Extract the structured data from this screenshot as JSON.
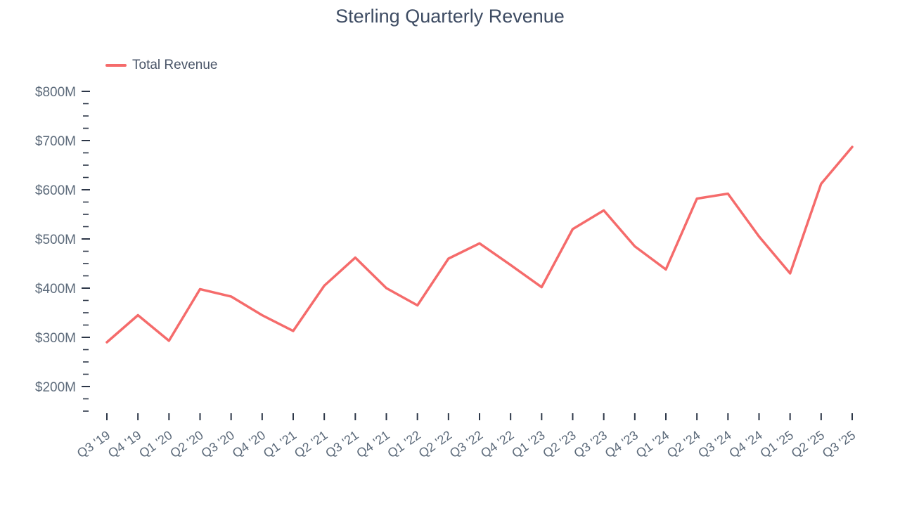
{
  "chart_data": {
    "type": "line",
    "title": "Sterling Quarterly Revenue",
    "legend": [
      {
        "label": "Total Revenue",
        "color": "#f56b6b"
      }
    ],
    "legend_position": "top-left",
    "grid": false,
    "categories": [
      "Q3 '19",
      "Q4 '19",
      "Q1 '20",
      "Q2 '20",
      "Q3 '20",
      "Q4 '20",
      "Q1 '21",
      "Q2 '21",
      "Q3 '21",
      "Q4 '21",
      "Q1 '22",
      "Q2 '22",
      "Q3 '22",
      "Q4 '22",
      "Q1 '23",
      "Q2 '23",
      "Q3 '23",
      "Q4 '23",
      "Q1 '24",
      "Q2 '24",
      "Q3 '24",
      "Q4 '24",
      "Q1 '25",
      "Q2 '25",
      "Q3 '25"
    ],
    "series": [
      {
        "name": "Total Revenue",
        "values": [
          290,
          345,
          293,
          398,
          383,
          345,
          313,
          405,
          462,
          400,
          365,
          460,
          491,
          447,
          402,
          520,
          558,
          485,
          438,
          582,
          592,
          505,
          430,
          612,
          687
        ]
      }
    ],
    "y_axis": {
      "tick_values": [
        200,
        300,
        400,
        500,
        600,
        700,
        800
      ],
      "tick_labels": [
        "$200M",
        "$300M",
        "$400M",
        "$500M",
        "$600M",
        "$700M",
        "$800M"
      ],
      "minor_tick_step": 25,
      "minor_tick_min": 150,
      "range_max": 800
    },
    "colors": {
      "line": "#f56b6b",
      "title_text": "#3e4c63",
      "axis_text": "#5c6a7a",
      "tick_mark": "#2d3748"
    }
  }
}
